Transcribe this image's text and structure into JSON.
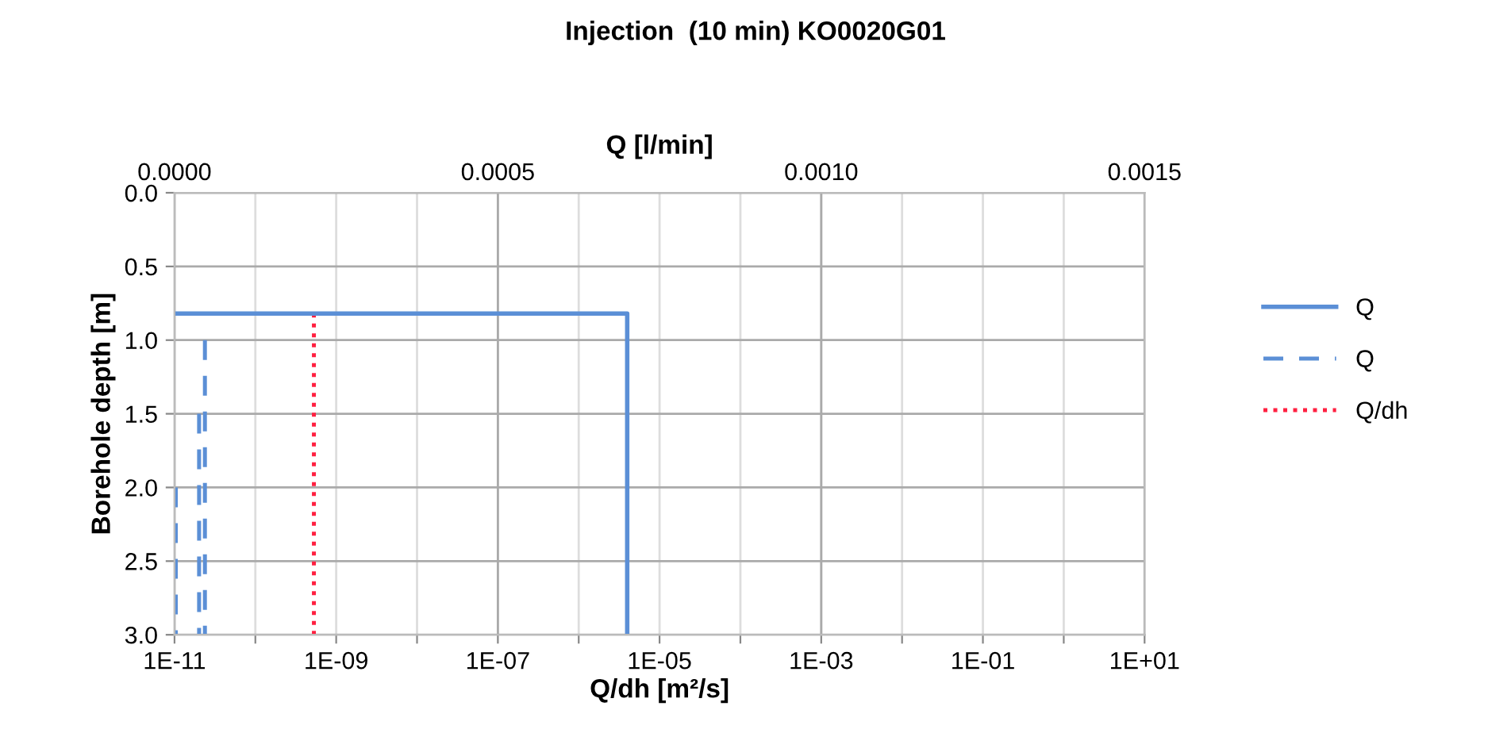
{
  "chart_data": {
    "type": "line",
    "title": "Injection  (10 min) KO0020G01",
    "xlabel": "Q/dh [m²/s]",
    "x2label": "Q [l/min]",
    "ylabel": "Borehole depth [m]",
    "log": "x",
    "xlim": [
      1e-11,
      10
    ],
    "xticks": [
      {
        "value": 1e-11,
        "label": "1E-11"
      },
      {
        "value": 1e-10,
        "label": null
      },
      {
        "value": 1e-09,
        "label": "1E-09"
      },
      {
        "value": 1e-08,
        "label": null
      },
      {
        "value": 1e-07,
        "label": "1E-07"
      },
      {
        "value": 1e-06,
        "label": null
      },
      {
        "value": 1e-05,
        "label": "1E-05"
      },
      {
        "value": 0.0001,
        "label": null
      },
      {
        "value": 0.001,
        "label": "1E-03"
      },
      {
        "value": 0.01,
        "label": null
      },
      {
        "value": 0.1,
        "label": "1E-01"
      },
      {
        "value": 1,
        "label": null
      },
      {
        "value": 10,
        "label": "1E+01"
      }
    ],
    "x2lim": [
      0,
      0.0015
    ],
    "x2ticks": [
      {
        "value": 0,
        "label": "0.0000"
      },
      {
        "value": 0.0005,
        "label": "0.0005"
      },
      {
        "value": 0.001,
        "label": "0.0010"
      },
      {
        "value": 0.0015,
        "label": "0.0015"
      }
    ],
    "ylim": [
      3.0,
      0.0
    ],
    "yticks": [
      {
        "value": 0,
        "label": "0.0"
      },
      {
        "value": 0.5,
        "label": "0.5"
      },
      {
        "value": 1,
        "label": "1.0"
      },
      {
        "value": 1.5,
        "label": "1.5"
      },
      {
        "value": 2,
        "label": "2.0"
      },
      {
        "value": 2.5,
        "label": "2.5"
      },
      {
        "value": 3,
        "label": "3.0"
      }
    ],
    "grid": true,
    "legend": "right",
    "series": [
      {
        "name": "Q",
        "axis": "x2",
        "color": "#5b8fd6",
        "line_style": "solid",
        "x": [
          0,
          0.0007,
          0.0007
        ],
        "values": [
          0.82,
          0.82,
          3.0
        ]
      },
      {
        "name": "Q",
        "axis": "x2",
        "color": "#5b8fd6",
        "line_style": "dashed",
        "x": [
          2e-06,
          2e-06,
          null,
          3.8e-05,
          3.8e-05,
          null,
          4.7e-05,
          4.7e-05
        ],
        "values": [
          2.0,
          3.0,
          null,
          1.5,
          3.0,
          null,
          1.0,
          3.0
        ]
      },
      {
        "name": "Q/dh",
        "color": "#ff2040",
        "line_style": "dotted",
        "x": [
          5.3e-10,
          5.3e-10
        ],
        "values": [
          0.82,
          3.0
        ]
      }
    ]
  }
}
